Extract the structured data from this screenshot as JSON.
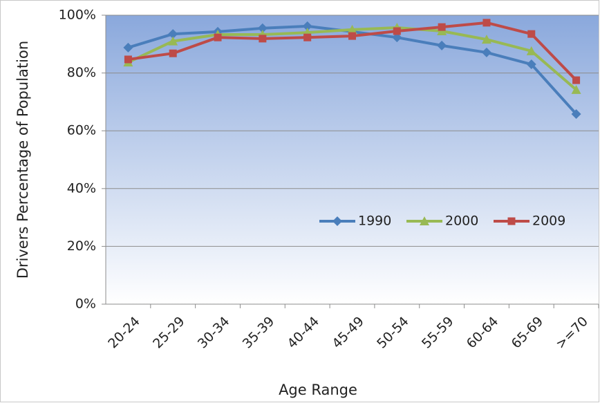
{
  "chart_data": {
    "type": "line",
    "x_label": "Age Range",
    "y_label": "Drivers Percentage of Population",
    "categories": [
      "20-24",
      "25-29",
      "30-34",
      "35-39",
      "40-44",
      "45-49",
      "50-54",
      "55-59",
      "60-64",
      "65-69",
      ">=70"
    ],
    "series": [
      {
        "name": "1990",
        "color": "#4a7ebb",
        "marker": "diamond",
        "values": [
          88.8,
          93.5,
          94.3,
          95.5,
          96.2,
          94.3,
          92.3,
          89.5,
          87.1,
          83,
          65.8
        ]
      },
      {
        "name": "2000",
        "color": "#98b954",
        "marker": "triangle",
        "values": [
          83.7,
          91,
          93.3,
          93.3,
          94,
          95,
          95.7,
          94.5,
          91.6,
          87.6,
          74.2
        ]
      },
      {
        "name": "2009",
        "color": "#be4b48",
        "marker": "square",
        "values": [
          84.7,
          86.8,
          92.3,
          91.9,
          92.3,
          92.8,
          94.5,
          95.9,
          97.4,
          93.5,
          77.5
        ]
      }
    ],
    "ylim": [
      0,
      100
    ],
    "yticks": [
      {
        "value": 0,
        "label": "0%"
      },
      {
        "value": 20,
        "label": "20%"
      },
      {
        "value": 40,
        "label": "40%"
      },
      {
        "value": 60,
        "label": "60%"
      },
      {
        "value": 80,
        "label": "80%"
      },
      {
        "value": 100,
        "label": "100%"
      }
    ],
    "grid": true,
    "legend": "right"
  }
}
